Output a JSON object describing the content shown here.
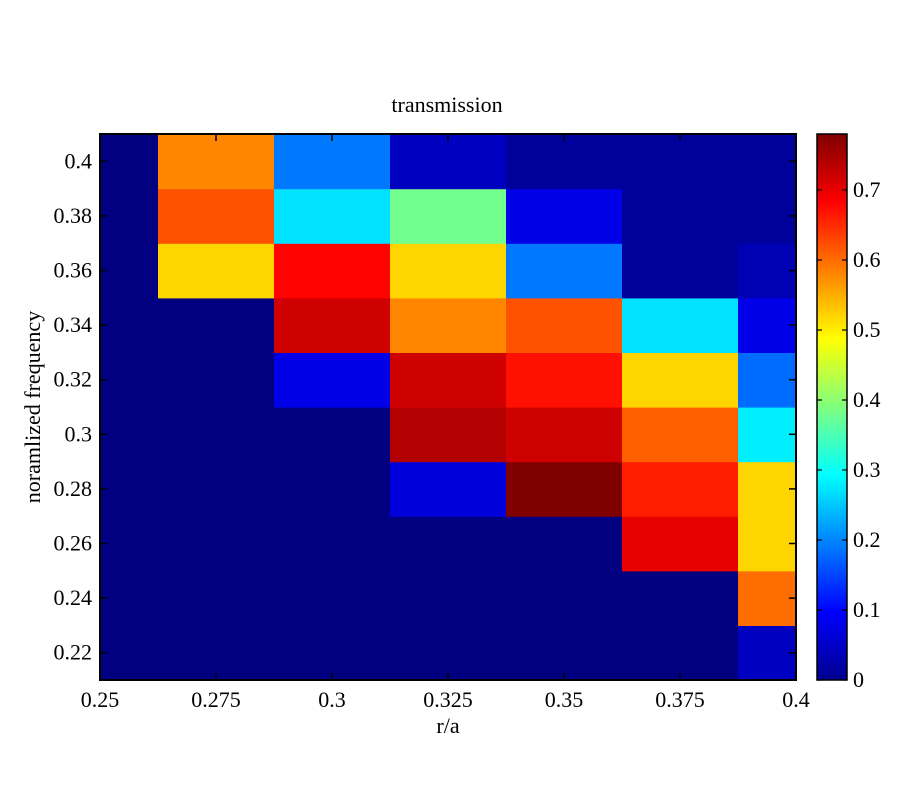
{
  "chart_data": {
    "type": "heatmap",
    "title": "transmission",
    "xlabel": "r/a",
    "ylabel": "noramlized frequency",
    "xlim": [
      0.25,
      0.4
    ],
    "ylim": [
      0.21,
      0.41
    ],
    "x_ticks": [
      0.25,
      0.275,
      0.3,
      0.325,
      0.35,
      0.375,
      0.4
    ],
    "x_tick_labels": [
      "0.25",
      "0.275",
      "0.3",
      "0.325",
      "0.35",
      "0.375",
      "0.4"
    ],
    "y_ticks": [
      0.22,
      0.24,
      0.26,
      0.28,
      0.3,
      0.32,
      0.34,
      0.36,
      0.38,
      0.4
    ],
    "y_tick_labels": [
      "0.22",
      "0.24",
      "0.26",
      "0.28",
      "0.3",
      "0.32",
      "0.34",
      "0.36",
      "0.38",
      "0.4"
    ],
    "x_centers": [
      0.25,
      0.275,
      0.3,
      0.325,
      0.35,
      0.375,
      0.4
    ],
    "y_centers": [
      0.22,
      0.24,
      0.26,
      0.28,
      0.3,
      0.32,
      0.34,
      0.36,
      0.38,
      0.4
    ],
    "values": [
      [
        0.0,
        0.0,
        0.0,
        0.0,
        0.0,
        0.0,
        0.05
      ],
      [
        0.0,
        0.0,
        0.0,
        0.0,
        0.0,
        0.0,
        0.6
      ],
      [
        0.0,
        0.0,
        0.0,
        0.0,
        0.0,
        0.7,
        0.52
      ],
      [
        0.0,
        0.0,
        0.0,
        0.07,
        0.78,
        0.66,
        0.52
      ],
      [
        0.0,
        0.0,
        0.0,
        0.74,
        0.72,
        0.61,
        0.28
      ],
      [
        0.0,
        0.0,
        0.08,
        0.72,
        0.67,
        0.52,
        0.18
      ],
      [
        0.0,
        0.0,
        0.72,
        0.58,
        0.62,
        0.27,
        0.08
      ],
      [
        0.0,
        0.52,
        0.68,
        0.52,
        0.19,
        0.02,
        0.04
      ],
      [
        0.0,
        0.62,
        0.27,
        0.38,
        0.08,
        0.02,
        0.02
      ],
      [
        0.0,
        0.58,
        0.19,
        0.05,
        0.02,
        0.02,
        0.02
      ]
    ],
    "colorbar": {
      "colormap": "jet",
      "min": 0,
      "max": 0.78,
      "ticks": [
        0,
        0.1,
        0.2,
        0.3,
        0.4,
        0.5,
        0.6,
        0.7
      ],
      "tick_labels": [
        "0",
        "0.1",
        "0.2",
        "0.3",
        "0.4",
        "0.5",
        "0.6",
        "0.7"
      ]
    }
  }
}
